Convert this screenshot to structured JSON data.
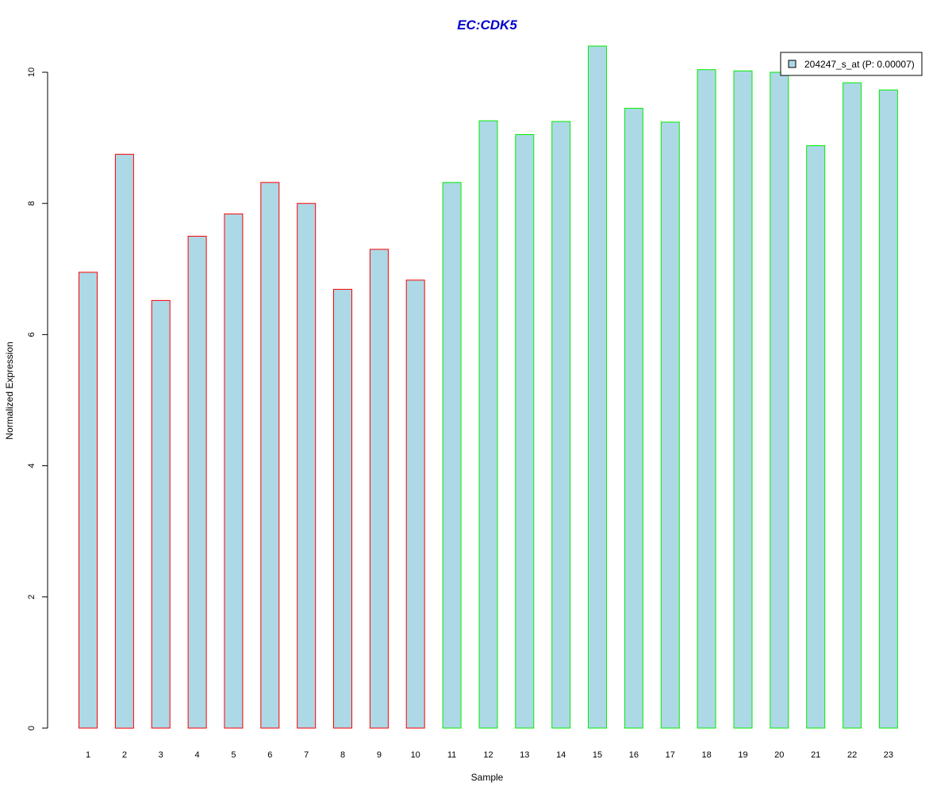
{
  "chart_data": {
    "type": "bar",
    "title": "EC:CDK5",
    "xlabel": "Sample",
    "ylabel": "Normalized Expression",
    "categories": [
      "1",
      "2",
      "3",
      "4",
      "5",
      "6",
      "7",
      "8",
      "9",
      "10",
      "11",
      "12",
      "13",
      "14",
      "15",
      "16",
      "17",
      "18",
      "19",
      "20",
      "21",
      "22",
      "23"
    ],
    "series": [
      {
        "name": "204247_s_at (P: 0.00007)",
        "values": [
          6.95,
          8.75,
          6.52,
          7.5,
          7.84,
          8.32,
          8.0,
          6.69,
          7.3,
          6.83,
          8.32,
          9.26,
          9.05,
          9.25,
          10.4,
          9.45,
          9.24,
          10.04,
          10.02,
          10.0,
          8.88,
          9.84,
          9.73
        ]
      }
    ],
    "groups": [
      1,
      1,
      1,
      1,
      1,
      1,
      1,
      1,
      1,
      1,
      2,
      2,
      2,
      2,
      2,
      2,
      2,
      2,
      2,
      2,
      2,
      2,
      2
    ],
    "group_colors": {
      "1": "#ff0000",
      "2": "#00ee00"
    },
    "fill_color": "#add8e6",
    "title_color": "#0000cc",
    "yticks": [
      0,
      2,
      4,
      6,
      8,
      10
    ],
    "ylim": [
      0,
      10.4
    ],
    "legend_position": "top-right",
    "grid": false
  }
}
